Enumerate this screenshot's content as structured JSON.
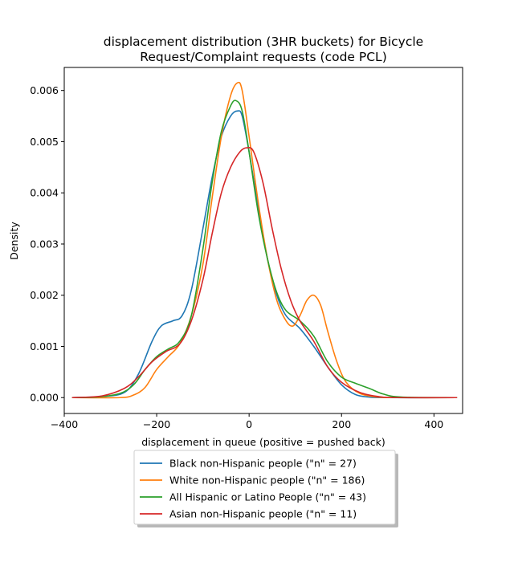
{
  "chart_data": {
    "type": "line",
    "title_line1": "displacement distribution (3HR buckets) for Bicycle",
    "title_line2": "Request/Complaint requests (code PCL)",
    "xlabel": "displacement in queue (positive = pushed back)",
    "ylabel": "Density",
    "xlim": [
      -400,
      462
    ],
    "ylim": [
      -0.00031,
      0.00645
    ],
    "xticks": [
      -400,
      -200,
      0,
      200,
      400
    ],
    "xtick_labels": [
      "−400",
      "−200",
      "0",
      "200",
      "400"
    ],
    "yticks": [
      0.0,
      0.001,
      0.002,
      0.003,
      0.004,
      0.005,
      0.006
    ],
    "ytick_labels": [
      "0.000",
      "0.001",
      "0.002",
      "0.003",
      "0.004",
      "0.005",
      "0.006"
    ],
    "legend_position": "below",
    "series": [
      {
        "name": "Black non-Hispanic people (\"n\" = 27)",
        "color": "#1f77b4",
        "points": [
          [
            -383,
            0
          ],
          [
            -320,
            2e-05
          ],
          [
            -270,
            0.0001
          ],
          [
            -240,
            0.00045
          ],
          [
            -210,
            0.0011
          ],
          [
            -190,
            0.0014
          ],
          [
            -165,
            0.0015
          ],
          [
            -145,
            0.0016
          ],
          [
            -125,
            0.0021
          ],
          [
            -100,
            0.0033
          ],
          [
            -80,
            0.0043
          ],
          [
            -60,
            0.0051
          ],
          [
            -40,
            0.0055
          ],
          [
            -25,
            0.0056
          ],
          [
            -15,
            0.0055
          ],
          [
            0,
            0.0048
          ],
          [
            20,
            0.0037
          ],
          [
            40,
            0.0027
          ],
          [
            60,
            0.002
          ],
          [
            80,
            0.0016
          ],
          [
            110,
            0.00135
          ],
          [
            140,
            0.001
          ],
          [
            170,
            0.0006
          ],
          [
            200,
            0.00025
          ],
          [
            230,
            6e-05
          ],
          [
            260,
            1e-05
          ],
          [
            300,
            0
          ],
          [
            450,
            0
          ]
        ]
      },
      {
        "name": "White non-Hispanic people (\"n\" = 186)",
        "color": "#ff7f0e",
        "points": [
          [
            -383,
            0
          ],
          [
            -280,
            0
          ],
          [
            -250,
            5e-05
          ],
          [
            -225,
            0.0002
          ],
          [
            -200,
            0.00055
          ],
          [
            -175,
            0.0008
          ],
          [
            -150,
            0.00105
          ],
          [
            -125,
            0.0016
          ],
          [
            -100,
            0.0026
          ],
          [
            -80,
            0.0039
          ],
          [
            -60,
            0.0051
          ],
          [
            -40,
            0.0059
          ],
          [
            -25,
            0.00615
          ],
          [
            -15,
            0.006
          ],
          [
            0,
            0.0051
          ],
          [
            20,
            0.0038
          ],
          [
            40,
            0.0027
          ],
          [
            60,
            0.0019
          ],
          [
            80,
            0.0015
          ],
          [
            95,
            0.0014
          ],
          [
            110,
            0.0016
          ],
          [
            125,
            0.0019
          ],
          [
            140,
            0.002
          ],
          [
            155,
            0.0018
          ],
          [
            170,
            0.0013
          ],
          [
            190,
            0.0007
          ],
          [
            210,
            0.0003
          ],
          [
            240,
            8e-05
          ],
          [
            280,
            1e-05
          ],
          [
            320,
            0
          ],
          [
            450,
            0
          ]
        ]
      },
      {
        "name": "All Hispanic or Latino People (\"n\" = 43)",
        "color": "#2ca02c",
        "points": [
          [
            -383,
            0
          ],
          [
            -330,
            1e-05
          ],
          [
            -280,
            8e-05
          ],
          [
            -250,
            0.00025
          ],
          [
            -225,
            0.00055
          ],
          [
            -200,
            0.0008
          ],
          [
            -175,
            0.00095
          ],
          [
            -150,
            0.0011
          ],
          [
            -125,
            0.0016
          ],
          [
            -100,
            0.0029
          ],
          [
            -80,
            0.0042
          ],
          [
            -60,
            0.0052
          ],
          [
            -40,
            0.0057
          ],
          [
            -28,
            0.0058
          ],
          [
            -15,
            0.0056
          ],
          [
            0,
            0.0048
          ],
          [
            20,
            0.0036
          ],
          [
            40,
            0.0027
          ],
          [
            60,
            0.00205
          ],
          [
            80,
            0.0017
          ],
          [
            110,
            0.0015
          ],
          [
            140,
            0.0012
          ],
          [
            170,
            0.0007
          ],
          [
            200,
            0.0004
          ],
          [
            230,
            0.00028
          ],
          [
            260,
            0.00018
          ],
          [
            290,
            7e-05
          ],
          [
            330,
            1e-05
          ],
          [
            450,
            0
          ]
        ]
      },
      {
        "name": "Asian non-Hispanic people (\"n\" = 11)",
        "color": "#d62728",
        "points": [
          [
            -383,
            0
          ],
          [
            -320,
            3e-05
          ],
          [
            -270,
            0.00018
          ],
          [
            -240,
            0.0004
          ],
          [
            -210,
            0.0007
          ],
          [
            -180,
            0.0009
          ],
          [
            -150,
            0.00105
          ],
          [
            -125,
            0.0015
          ],
          [
            -100,
            0.0023
          ],
          [
            -80,
            0.0032
          ],
          [
            -60,
            0.004
          ],
          [
            -40,
            0.0045
          ],
          [
            -20,
            0.0048
          ],
          [
            -5,
            0.00488
          ],
          [
            10,
            0.0048
          ],
          [
            30,
            0.0042
          ],
          [
            50,
            0.0033
          ],
          [
            70,
            0.0025
          ],
          [
            90,
            0.0019
          ],
          [
            110,
            0.0015
          ],
          [
            140,
            0.0011
          ],
          [
            170,
            0.0006
          ],
          [
            200,
            0.0003
          ],
          [
            240,
            0.0001
          ],
          [
            280,
            2e-05
          ],
          [
            320,
            0
          ],
          [
            450,
            0
          ]
        ]
      }
    ]
  }
}
